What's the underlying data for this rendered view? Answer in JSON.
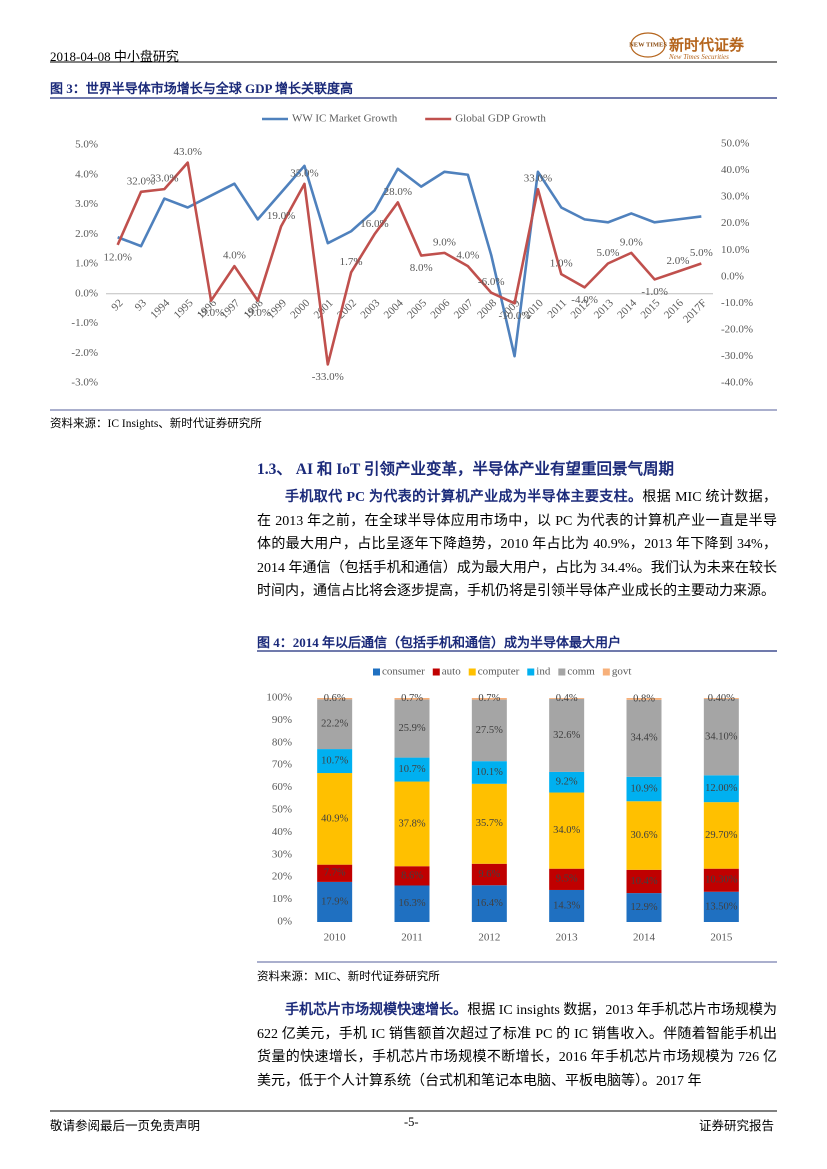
{
  "header": {
    "date_section": "2018-04-08 中小盘研究",
    "company": "新时代证券",
    "company_en": "New Times Securities",
    "logo_text": "NEW TIMES"
  },
  "figure3": {
    "title": "图 3：世界半导体市场增长与全球 GDP 增长关联度高",
    "source": "资料来源：IC Insights、新时代证券研究所",
    "chart": {
      "type": "line",
      "legend_position": "top",
      "categories": [
        "92",
        "93",
        "1994",
        "1995",
        "1996",
        "1997",
        "1998",
        "1999",
        "2000",
        "2001",
        "2002",
        "2003",
        "2004",
        "2005",
        "2006",
        "2007",
        "2008",
        "2009",
        "2010",
        "2011",
        "2012",
        "2013",
        "2014",
        "2015",
        "2016",
        "2017F"
      ],
      "series": [
        {
          "name": "WW IC Market Growth",
          "color": "#4f81bd",
          "values": [
            1.9,
            1.6,
            3.2,
            2.9,
            3.3,
            3.7,
            2.5,
            3.4,
            4.3,
            1.7,
            2.1,
            2.8,
            4.2,
            3.6,
            4.1,
            4.0,
            1.3,
            -2.1,
            4.1,
            2.9,
            2.5,
            2.4,
            2.7,
            2.4,
            2.5,
            2.6
          ]
        },
        {
          "name": "Global GDP Growth",
          "color": "#c0504d",
          "axis": "y2",
          "values": [
            12,
            32,
            33,
            43,
            -9,
            4,
            -9,
            19,
            35,
            -33,
            1.7,
            16,
            28,
            8,
            9,
            4,
            -6,
            -10,
            33,
            1,
            -4,
            5,
            9,
            -1,
            2,
            5
          ],
          "value_labels": [
            "12.0%",
            "32.0%",
            "33.0%",
            "43.0%",
            "-9.0%",
            "4.0%",
            "-9.0%",
            "19.0%",
            "35.0%",
            "-33.0%",
            "1.7%",
            "16.0%",
            "28.0%",
            "8.0%",
            "9.0%",
            "4.0%",
            "-6.0%",
            "-10.0%",
            "33.0%",
            "1.0%",
            "-4.0%",
            "5.0%",
            "9.0%",
            "-1.0%",
            "2.0%",
            "5.0%"
          ]
        }
      ],
      "ylim": [
        -3,
        5
      ],
      "yticks": [
        {
          "value": -3,
          "label": "-3.0%"
        },
        {
          "value": -2,
          "label": "-2.0%"
        },
        {
          "value": -1,
          "label": "-1.0%"
        },
        {
          "value": 0,
          "label": "0.0%"
        },
        {
          "value": 1,
          "label": "1.0%"
        },
        {
          "value": 2,
          "label": "2.0%"
        },
        {
          "value": 3,
          "label": "3.0%"
        },
        {
          "value": 4,
          "label": "4.0%"
        },
        {
          "value": 5,
          "label": "5.0%"
        }
      ],
      "y2lim": [
        -40,
        50
      ],
      "y2ticks": [
        {
          "value": -40,
          "label": "-40.0%"
        },
        {
          "value": -30,
          "label": "-30.0%"
        },
        {
          "value": -20,
          "label": "-20.0%"
        },
        {
          "value": -10,
          "label": "-10.0%"
        },
        {
          "value": 0,
          "label": "0.0%"
        },
        {
          "value": 10,
          "label": "10.0%"
        },
        {
          "value": 20,
          "label": "20.0%"
        },
        {
          "value": 30,
          "label": "30.0%"
        },
        {
          "value": 40,
          "label": "40.0%"
        },
        {
          "value": 50,
          "label": "50.0%"
        }
      ]
    }
  },
  "section": {
    "heading": "1.3、 AI 和 IoT 引领产业变革，半导体产业有望重回景气周期"
  },
  "paragraph1": {
    "lead": "手机取代 PC 为代表的计算机产业成为半导体主要支柱。",
    "text": "根据 MIC 统计数据，在 2013 年之前，在全球半导体应用市场中，以 PC 为代表的计算机产业一直是半导体的最大用户，占比呈逐年下降趋势，2010 年占比为 40.9%，2013 年下降到 34%，2014 年通信（包括手机和通信）成为最大用户，占比为 34.4%。我们认为未来在较长时间内，通信占比将会逐步提高，手机仍将是引领半导体产业成长的主要动力来源。"
  },
  "figure4": {
    "title": "图 4：2014 年以后通信（包括手机和通信）成为半导体最大用户",
    "source": "资料来源：MIC、新时代证券研究所",
    "chart": {
      "type": "stacked_bar",
      "legend_position": "top",
      "categories": [
        "2010",
        "2011",
        "2012",
        "2013",
        "2014",
        "2015"
      ],
      "series": [
        {
          "name": "consumer",
          "color": "#1f70c1",
          "values": [
            17.9,
            16.3,
            16.4,
            14.3,
            12.9,
            13.5
          ],
          "value_labels": [
            "17.9%",
            "16.3%",
            "16.4%",
            "14.3%",
            "12.9%",
            "13.50%"
          ]
        },
        {
          "name": "auto",
          "color": "#c00000",
          "values": [
            7.7,
            8.6,
            9.6,
            9.5,
            10.4,
            10.3
          ],
          "value_labels": [
            "7.7%",
            "8.6%",
            "9.6%",
            "9.5%",
            "10.4%",
            "10.30%"
          ]
        },
        {
          "name": "computer",
          "color": "#ffc000",
          "values": [
            40.9,
            37.8,
            35.7,
            34.0,
            30.6,
            29.7
          ],
          "value_labels": [
            "40.9%",
            "37.8%",
            "35.7%",
            "34.0%",
            "30.6%",
            "29.70%"
          ]
        },
        {
          "name": "ind",
          "color": "#00b0f0",
          "values": [
            10.7,
            10.7,
            10.1,
            9.2,
            10.9,
            12.0
          ],
          "value_labels": [
            "10.7%",
            "10.7%",
            "10.1%",
            "9.2%",
            "10.9%",
            "12.00%"
          ]
        },
        {
          "name": "comm",
          "color": "#a5a5a5",
          "values": [
            22.2,
            25.9,
            27.5,
            32.6,
            34.4,
            34.1
          ],
          "value_labels": [
            "22.2%",
            "25.9%",
            "27.5%",
            "32.6%",
            "34.4%",
            "34.10%"
          ]
        },
        {
          "name": "govt",
          "color": "#f7b07a",
          "values": [
            0.6,
            0.7,
            0.7,
            0.4,
            0.8,
            0.4
          ],
          "value_labels": [
            "0.6%",
            "0.7%",
            "0.7%",
            "0.4%",
            "0.8%",
            "0.40%"
          ]
        }
      ],
      "ylim": [
        0,
        100
      ],
      "yticks": [
        {
          "value": 0,
          "label": "0%"
        },
        {
          "value": 10,
          "label": "10%"
        },
        {
          "value": 20,
          "label": "20%"
        },
        {
          "value": 30,
          "label": "30%"
        },
        {
          "value": 40,
          "label": "40%"
        },
        {
          "value": 50,
          "label": "50%"
        },
        {
          "value": 60,
          "label": "60%"
        },
        {
          "value": 70,
          "label": "70%"
        },
        {
          "value": 80,
          "label": "80%"
        },
        {
          "value": 90,
          "label": "90%"
        },
        {
          "value": 100,
          "label": "100%"
        }
      ]
    }
  },
  "paragraph2": {
    "lead": "手机芯片市场规模快速增长。",
    "text": "根据 IC insights 数据，2013 年手机芯片市场规模为 622 亿美元，手机 IC 销售额首次超过了标准 PC 的 IC 销售收入。伴随着智能手机出货量的快速增长，手机芯片市场规模不断增长，2016 年手机芯片市场规模为 726 亿美元，低于个人计算系统（台式机和笔记本电脑、平板电脑等）。2017 年"
  },
  "footer": {
    "disclaimer": "敬请参阅最后一页免责声明",
    "page": "-5-",
    "report_type": "证券研究报告"
  }
}
